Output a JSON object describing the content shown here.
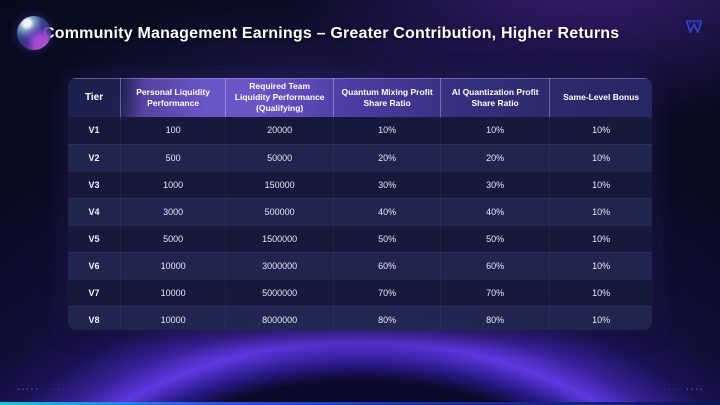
{
  "slide": {
    "title": "Community Management Earnings – Greater Contribution, Higher Returns"
  },
  "icons": {
    "logo": "orb-logo-icon",
    "corner": "brand-lattice-icon"
  },
  "table": {
    "columns": [
      "Tier",
      "Personal Liquidity Performance",
      "Required Team Liquidity Performance (Qualifying)",
      "Quantum Mixing Profit Share Ratio",
      "AI Quantization Profit Share Ratio",
      "Same-Level Bonus"
    ],
    "rows": [
      [
        "V1",
        "100",
        "20000",
        "10%",
        "10%",
        "10%"
      ],
      [
        "V2",
        "500",
        "50000",
        "20%",
        "20%",
        "10%"
      ],
      [
        "V3",
        "1000",
        "150000",
        "30%",
        "30%",
        "10%"
      ],
      [
        "V4",
        "3000",
        "500000",
        "40%",
        "40%",
        "10%"
      ],
      [
        "V5",
        "5000",
        "1500000",
        "50%",
        "50%",
        "10%"
      ],
      [
        "V6",
        "10000",
        "3000000",
        "60%",
        "60%",
        "10%"
      ],
      [
        "V7",
        "10000",
        "5000000",
        "70%",
        "70%",
        "10%"
      ],
      [
        "V8",
        "10000",
        "8000000",
        "80%",
        "80%",
        "10%"
      ]
    ]
  },
  "footer": {
    "left_marks": "•••••·  ····",
    "right_marks": "····  ••••"
  },
  "colors": {
    "header_purple": "#6b56c9",
    "header_navy": "#1d2150",
    "row_dark": "#171a3c",
    "row_light": "#20264f",
    "dome_purple": "#6c3efa",
    "accent_teal": "#1bc6da",
    "accent_blue": "#2e57e6",
    "brand_blue": "#3248d8"
  }
}
